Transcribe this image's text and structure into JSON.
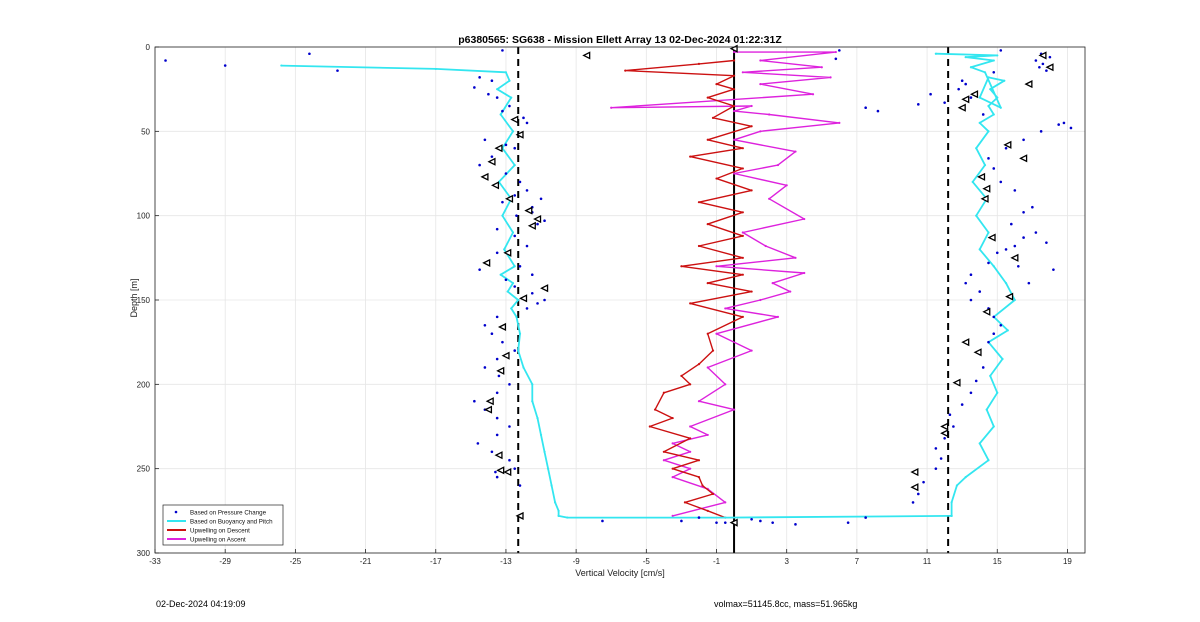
{
  "chart_data": {
    "type": "line",
    "title": "p6380565: SG638 - Mission Ellett Array 13 02-Dec-2024 01:22:31Z",
    "xlabel": "Vertical Velocity [cm/s]",
    "ylabel": "Depth [m]",
    "xlim": [
      -33,
      20
    ],
    "ylim": [
      0,
      300
    ],
    "y_reversed": true,
    "xticks": [
      -33,
      -29,
      -25,
      -21,
      -17,
      -13,
      -9,
      -5,
      -1,
      3,
      7,
      11,
      15,
      19
    ],
    "yticks": [
      0,
      50,
      100,
      150,
      200,
      250,
      300
    ],
    "grid": true,
    "legend_position": "bottom-left",
    "colors": {
      "pressure": "#0000cc",
      "buoyancy": "#33e6f0",
      "descent": "#cc1111",
      "ascent": "#dd22dd",
      "axis": "#000000"
    },
    "reference_lines": [
      {
        "style": "dashed",
        "x": -12.3
      },
      {
        "style": "solid",
        "x": 0
      },
      {
        "style": "dashed",
        "x": 12.2
      }
    ],
    "series": [
      {
        "name": "Based on Buoyancy and Pitch",
        "descent": {
          "x": [
            -25.8,
            -17,
            -13,
            -12.8,
            -13.5,
            -12.7,
            -13.3,
            -12.6,
            -13.2,
            -12.5,
            -13.4,
            -12.7,
            -13.2,
            -12.6,
            -13.1,
            -12.5,
            -13.3,
            -12.6,
            -12.9,
            -12.3,
            -12.7,
            -12.4,
            -12.2,
            -12.3,
            -12.0,
            -11.5,
            -11.5,
            -11.2,
            -11.0,
            -10.8,
            -10.6,
            -10.4,
            -10.2,
            -10.0,
            -10.0,
            -9.5,
            -0.5,
            12.4
          ],
          "y": [
            11,
            13,
            15,
            20,
            25,
            30,
            40,
            50,
            60,
            70,
            80,
            90,
            100,
            110,
            120,
            130,
            135,
            140,
            145,
            150,
            155,
            160,
            170,
            180,
            190,
            200,
            210,
            220,
            230,
            240,
            250,
            260,
            270,
            275,
            278,
            279,
            279,
            278
          ]
        },
        "ascent": {
          "x": [
            12.4,
            12.4,
            12.7,
            13.2,
            14.5,
            14.0,
            14.8,
            14.4,
            15.0,
            14.6,
            15.3,
            14.5,
            15.6,
            14.8,
            16.0,
            15.5,
            14.8,
            14.0,
            14.5,
            13.8,
            14.4,
            13.6,
            14.3,
            13.8,
            14.5,
            14.0,
            14.8,
            14.5,
            15.0,
            14.6,
            15.4,
            14.5,
            14.0,
            15.2,
            14.3,
            13.5,
            14.8,
            13.2,
            15.0,
            11.5
          ],
          "y": [
            278,
            270,
            260,
            255,
            245,
            235,
            225,
            215,
            205,
            195,
            185,
            175,
            168,
            160,
            150,
            140,
            130,
            120,
            110,
            100,
            90,
            80,
            70,
            60,
            50,
            45,
            40,
            35,
            30,
            25,
            20,
            18,
            30,
            36,
            15,
            12,
            8,
            6,
            5,
            4
          ]
        }
      },
      {
        "name": "Upwelling on Descent",
        "x": [
          0,
          -2,
          -6.2,
          0,
          -1,
          0,
          -1.5,
          0,
          -1.2,
          1,
          -1.5,
          0.5,
          -2.5,
          0.5,
          -1,
          1,
          -2,
          0.5,
          -1.5,
          0.5,
          -2,
          0.5,
          -3,
          0.5,
          -1.5,
          1,
          -2.5,
          0.5,
          -1.5,
          -1.2,
          -2,
          -3,
          -2.5,
          -4,
          -4.5,
          -3.5,
          -4.8,
          -2.5,
          -4,
          -2,
          -3.5,
          -2,
          -1.8,
          -1.2,
          -2.8,
          -1.5,
          -0.5
        ],
        "y": [
          8,
          10,
          14,
          17,
          22,
          25,
          30,
          35,
          42,
          47,
          55,
          60,
          65,
          72,
          78,
          85,
          92,
          98,
          105,
          112,
          118,
          125,
          130,
          135,
          140,
          145,
          152,
          160,
          170,
          180,
          188,
          195,
          200,
          205,
          215,
          220,
          225,
          232,
          240,
          245,
          250,
          255,
          260,
          265,
          270,
          275,
          279
        ]
      },
      {
        "name": "Upwelling on Ascent",
        "x": [
          0,
          5.8,
          1.5,
          5.0,
          0.5,
          5.5,
          1.5,
          4.5,
          -7,
          1,
          0,
          2,
          6,
          1.5,
          0,
          3.5,
          2.5,
          0,
          3,
          2,
          4,
          0.5,
          1.8,
          3.5,
          -1,
          4,
          2.2,
          3.2,
          1.5,
          -0.5,
          2.5,
          -1,
          1,
          -1.5,
          -0.5,
          -2,
          0,
          -2.5,
          -1.5,
          -3.5,
          -2.5,
          -4,
          -2.5,
          -3.5,
          -1.5,
          -0.5,
          -3.5
        ],
        "y": [
          3,
          3,
          8,
          12,
          15,
          18,
          22,
          28,
          36,
          35,
          38,
          40,
          45,
          50,
          55,
          62,
          70,
          75,
          82,
          90,
          102,
          110,
          118,
          125,
          130,
          134,
          140,
          145,
          150,
          155,
          160,
          170,
          180,
          190,
          200,
          210,
          215,
          225,
          230,
          235,
          240,
          245,
          250,
          255,
          262,
          270,
          278
        ]
      },
      {
        "name": "Based on Pressure Change",
        "descent_points": {
          "x": [
            -32.4,
            -29,
            -24.2,
            -22.6,
            -13.2,
            -14.5,
            -13.8,
            -14.8,
            -14,
            -13.5,
            -12.8,
            -13.2,
            -12,
            -11.8,
            -14.2,
            -13,
            -12.5,
            -13.8,
            -14.5,
            -13,
            -12.2,
            -11.8,
            -12.5,
            -13.2,
            -11.5,
            -11,
            -12.4,
            -11.2,
            -11.5,
            -10.8,
            -13.5,
            -12.5,
            -11.8,
            -13.5,
            -14,
            -12.2,
            -11.5,
            -14.5,
            -13,
            -12.5,
            -11.5,
            -10.8,
            -11.2,
            -11.8,
            -13.5,
            -14.2,
            -13.8,
            -13.2,
            -12.5,
            -13.5,
            -14.2,
            -13.4,
            -12.8,
            -13.5,
            -14.8,
            -14.2,
            -13.5,
            -12.8,
            -13.5,
            -14.6,
            -13.8,
            -12.8,
            -12.5,
            -13.5,
            -13.6,
            -12.2,
            -12.2,
            -7.5,
            -1
          ],
          "y": [
            8,
            11,
            4,
            14,
            2,
            18,
            20,
            24,
            28,
            30,
            35,
            38,
            42,
            45,
            55,
            58,
            60,
            65,
            70,
            75,
            80,
            85,
            88,
            92,
            95,
            90,
            100,
            105,
            98,
            103,
            108,
            112,
            118,
            122,
            127,
            130,
            135,
            132,
            138,
            142,
            146,
            150,
            152,
            155,
            160,
            165,
            170,
            175,
            180,
            185,
            190,
            195,
            200,
            205,
            210,
            215,
            220,
            225,
            230,
            235,
            240,
            245,
            250,
            255,
            252,
            260,
            278,
            281,
            282
          ]
        },
        "ascent_points": {
          "x": [
            7.5,
            6.5,
            3.5,
            1.5,
            -0.5,
            1,
            -2,
            -3,
            2.2,
            10.2,
            10.5,
            10.8,
            11.5,
            11.8,
            11.5,
            12.0,
            12.5,
            12.3,
            13.0,
            13.5,
            13.8,
            14.2,
            14.0,
            14.5,
            14.8,
            15.2,
            14.8,
            14.5,
            13.5,
            14.0,
            13.2,
            13.5,
            14.5,
            15.0,
            16.0,
            16.5,
            17.2,
            17.8,
            18.2,
            16.8,
            16.2,
            15.5,
            15.8,
            16.5,
            17.0,
            16.0,
            15.2,
            14.8,
            14.5,
            15.5,
            16.5,
            17.5,
            18.5,
            19.2,
            18.8,
            17.6,
            17.8,
            17.2,
            17.5,
            18.0,
            14.8,
            13.2,
            12.8,
            13.5,
            11.2,
            12.0,
            13.0,
            14.2,
            10.5,
            7.5,
            8.2,
            6.0,
            5.8,
            15.2,
            17.4
          ],
          "y": [
            279,
            282,
            283,
            281,
            282,
            280,
            279,
            281,
            282,
            270,
            265,
            258,
            250,
            244,
            238,
            232,
            225,
            218,
            212,
            205,
            198,
            190,
            182,
            175,
            170,
            165,
            160,
            155,
            150,
            145,
            140,
            135,
            128,
            122,
            118,
            113,
            110,
            116,
            132,
            140,
            130,
            120,
            105,
            98,
            95,
            85,
            80,
            72,
            66,
            60,
            55,
            50,
            46,
            48,
            45,
            10,
            14,
            8,
            4,
            6,
            15,
            22,
            25,
            30,
            28,
            33,
            20,
            40,
            34,
            36,
            38,
            2,
            7,
            2,
            12
          ]
        }
      }
    ],
    "markers_triangle": {
      "x": [
        -8.4,
        0,
        -12.5,
        -12.2,
        -13.4,
        -13.8,
        -14.2,
        -13.6,
        -12.8,
        -11.7,
        -11.2,
        -11.5,
        -12.9,
        -14.1,
        -10.8,
        -12,
        -13.2,
        -13,
        -13.3,
        -13.9,
        -14,
        -13.4,
        -13.3,
        -12.9,
        17.6,
        18,
        16.8,
        13.7,
        13.2,
        13,
        15.6,
        16.5,
        14.1,
        14.4,
        14.3,
        14.7,
        16,
        15.7,
        14.4,
        13.2,
        13.9,
        12.7,
        12,
        12,
        10.3,
        10.3,
        -12.2,
        0
      ],
      "y": [
        5,
        1,
        43,
        52,
        60,
        68,
        77,
        82,
        90,
        97,
        102,
        106,
        122,
        128,
        143,
        149,
        166,
        183,
        192,
        210,
        215,
        242,
        251,
        252,
        5,
        12,
        22,
        28,
        31,
        36,
        58,
        66,
        77,
        84,
        90,
        113,
        125,
        148,
        157,
        175,
        181,
        199,
        225,
        229,
        252,
        261,
        278,
        282
      ]
    }
  },
  "footer": {
    "left": "02-Dec-2024 04:19:09",
    "right": "volmax=51145.8cc, mass=51.965kg"
  }
}
